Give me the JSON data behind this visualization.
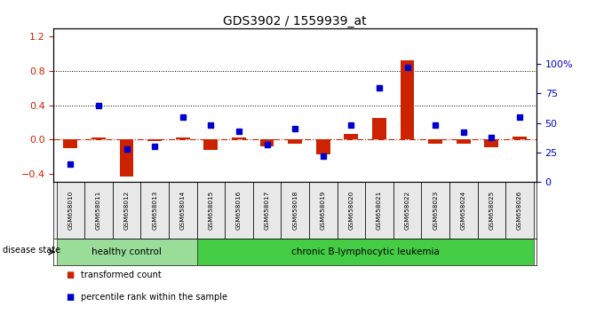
{
  "title": "GDS3902 / 1559939_at",
  "samples": [
    "GSM658010",
    "GSM658011",
    "GSM658012",
    "GSM658013",
    "GSM658014",
    "GSM658015",
    "GSM658016",
    "GSM658017",
    "GSM658018",
    "GSM658019",
    "GSM658020",
    "GSM658021",
    "GSM658022",
    "GSM658023",
    "GSM658024",
    "GSM658025",
    "GSM658026"
  ],
  "bar_values": [
    -0.1,
    0.02,
    -0.43,
    -0.02,
    0.02,
    -0.12,
    0.02,
    -0.08,
    -0.05,
    -0.17,
    0.06,
    0.25,
    0.93,
    -0.05,
    -0.05,
    -0.09,
    0.03
  ],
  "dot_values_pct": [
    15,
    65,
    28,
    30,
    55,
    48,
    43,
    32,
    45,
    22,
    48,
    80,
    97,
    48,
    42,
    38,
    55
  ],
  "left_ylim": [
    -0.5,
    1.3
  ],
  "right_ylim": [
    0,
    130
  ],
  "left_yticks": [
    -0.4,
    0.0,
    0.4,
    0.8,
    1.2
  ],
  "right_yticks": [
    0,
    25,
    50,
    75,
    100
  ],
  "right_yticklabels": [
    "0",
    "25",
    "50",
    "75",
    "100%"
  ],
  "bar_color": "#cc2200",
  "dot_color": "#0000cc",
  "zero_line_color": "#cc2200",
  "n_healthy": 5,
  "n_disease": 12,
  "healthy_label": "healthy control",
  "disease_label": "chronic B-lymphocytic leukemia",
  "disease_state_label": "disease state",
  "legend_bar_label": "transformed count",
  "legend_dot_label": "percentile rank within the sample",
  "healthy_color": "#99dd99",
  "disease_color": "#44cc44",
  "label_area_color": "#e0e0e0",
  "plot_bg_color": "#ffffff"
}
